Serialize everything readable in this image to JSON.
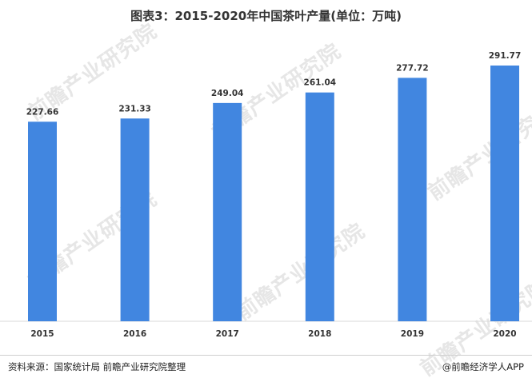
{
  "chart_data": {
    "type": "bar",
    "title": "图表3：2015-2020年中国茶叶产量(单位：万吨)",
    "categories": [
      "2015",
      "2016",
      "2017",
      "2018",
      "2019",
      "2020"
    ],
    "series": [
      {
        "values": [
          227.66,
          231.33,
          249.04,
          261.04,
          277.72,
          291.77
        ]
      }
    ],
    "ylim": [
      0,
      291.77
    ],
    "grid": false,
    "legend": "none",
    "bar_color": "#4186e0"
  },
  "footer": {
    "source": "资料来源：国家统计局 前瞻产业研究院整理",
    "brand": "@前瞻经济学人APP"
  },
  "watermark": {
    "text": "前瞻产业研究院"
  }
}
